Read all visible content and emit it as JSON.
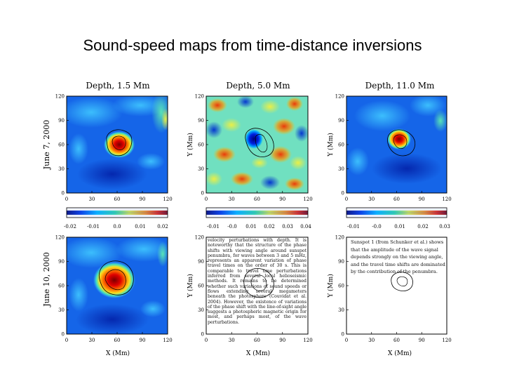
{
  "title": "Sound-speed maps from time-distance inversions",
  "chart_data": {
    "type": "heatmap",
    "panel_titles": [
      "Depth, 1.5 Mm",
      "Depth, 5.0 Mm",
      "Depth, 11.0 Mm"
    ],
    "row_labels": [
      "June 7, 2000",
      "June 10, 2000"
    ],
    "xlabel": "X (Mm)",
    "ylabel": "Y (Mm)",
    "xlim": [
      0,
      120
    ],
    "ylim": [
      0,
      120
    ],
    "axis_ticks": [
      "0",
      "30",
      "60",
      "90",
      "120"
    ],
    "colorbars": [
      {
        "ticks": [
          "-0.02",
          "-0.01",
          "0.0",
          "0.01",
          "0.02"
        ]
      },
      {
        "ticks": [
          "-0.01",
          "-0.0",
          "0.01",
          "0.02",
          "0.03",
          "0.04"
        ]
      },
      {
        "ticks": [
          "-0.01",
          "-0.0",
          "0.01",
          "0.02",
          "0.03"
        ]
      }
    ],
    "features": [
      {
        "row": 0,
        "col": 0,
        "kind": "positive",
        "center": [
          62,
          60
        ],
        "radius": 14
      },
      {
        "row": 0,
        "col": 1,
        "kind": "negative",
        "center": [
          55,
          65
        ],
        "radius": 10
      },
      {
        "row": 0,
        "col": 2,
        "kind": "positive",
        "center": [
          60,
          65
        ],
        "radius": 12
      },
      {
        "row": 1,
        "col": 0,
        "kind": "positive",
        "center": [
          60,
          67
        ],
        "radius": 16
      }
    ]
  },
  "text_blocks": {
    "middle": "velocity perturbations with depth. It is noteworthy that the structure of the phase shifts with viewing angle around sunspot penumbra, for waves between 3 and 5 mHz, represents an apparent variation of phase travel times on the order of 30 s. This is comparable to travel time perturbations inferred from several local helioseismic methods. It remains to be determined whether such variations of sound speeds or flows extending several megameters beneath the photosphere (Couvidat et al. 2004). However, the existence of variations of the phase shift with the line-of-sight angle suggests a photospheric magnetic origin for most, and perhaps most, of the wave perturbations.",
    "right": "Sunspot 1 (from Schunker et al.) shows that the amplitude of the wave signal depends strongly on the viewing angle, and the travel time shifts are dominated by the contribution of the penumbra."
  }
}
